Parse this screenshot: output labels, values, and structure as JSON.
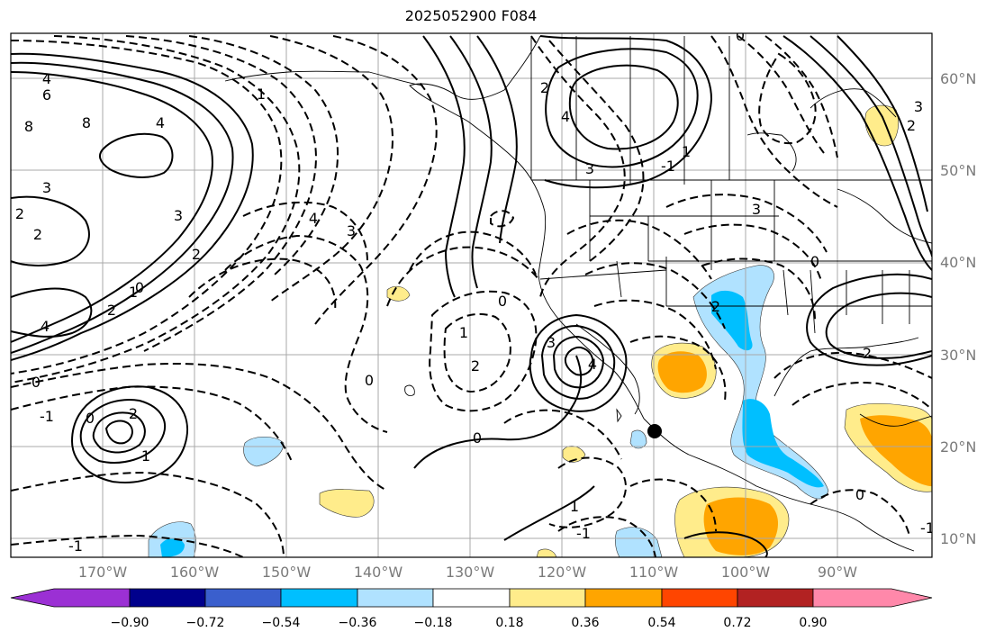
{
  "title": "2025052900 F084",
  "lat_labels": [
    "60°N",
    "50°N",
    "40°N",
    "30°N",
    "20°N",
    "10°N"
  ],
  "lon_labels": [
    "170°W",
    "160°W",
    "150°W",
    "140°W",
    "130°W",
    "120°W",
    "110°W",
    "100°W",
    "90°W"
  ],
  "colorbar": {
    "tick_labels": [
      "−0.90",
      "−0.72",
      "−0.54",
      "−0.36",
      "−0.18",
      "0.18",
      "0.36",
      "0.54",
      "0.72",
      "0.90"
    ],
    "colors": [
      "#9b30d4",
      "#00008c",
      "#3a5fcd",
      "#00bfff",
      "#b0e2ff",
      "#ffffff",
      "#ffec8b",
      "#ffa500",
      "#ff4500",
      "#b22222",
      "#ff88aa"
    ]
  },
  "contour_labels": [
    "4",
    "6",
    "8",
    "8",
    "3",
    "2",
    "2",
    "4",
    "2",
    "1",
    "0",
    "4",
    "-1",
    "0",
    "2",
    "1",
    "-1",
    "0",
    "3",
    "4",
    "3",
    "2",
    "0",
    "1",
    "2",
    "0",
    "3",
    "4",
    "1",
    "0",
    "-1",
    "2",
    "3",
    "4",
    "1",
    "2",
    "3",
    "0",
    "2",
    "1",
    "-1",
    "2",
    "3",
    "0",
    "0",
    "-1"
  ]
}
